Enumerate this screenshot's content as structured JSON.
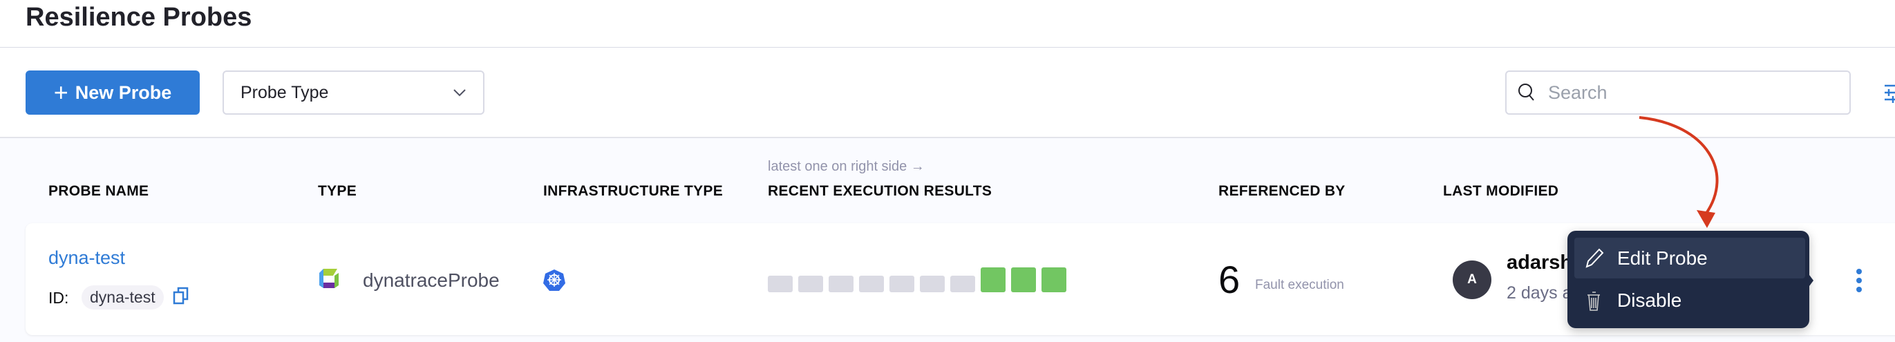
{
  "page": {
    "title": "Resilience Probes"
  },
  "toolbar": {
    "new_probe_label": "New Probe",
    "probe_type_label": "Probe Type",
    "search_placeholder": "Search"
  },
  "table": {
    "hint": "latest one on right side →",
    "columns": [
      "PROBE NAME",
      "TYPE",
      "INFRASTRUCTURE TYPE",
      "RECENT EXECUTION RESULTS",
      "REFERENCED BY",
      "LAST MODIFIED"
    ],
    "rows": [
      {
        "name": "dyna-test",
        "id_label": "ID:",
        "id": "dyna-test",
        "type": "dynatraceProbe",
        "type_icon": "dynatrace-icon",
        "infra_icon": "kubernetes-icon",
        "recent_results": [
          "none",
          "none",
          "none",
          "none",
          "none",
          "none",
          "none",
          "success",
          "success",
          "success"
        ],
        "referenced_count": "6",
        "referenced_text": "Fault execution",
        "avatar_initial": "A",
        "modified_by": "adarsh",
        "modified_when": "2 days a"
      }
    ]
  },
  "context_menu": {
    "items": [
      {
        "label": "Edit Probe",
        "icon": "pencil-icon"
      },
      {
        "label": "Disable",
        "icon": "trash-icon"
      }
    ]
  },
  "colors": {
    "primary": "#2f7bd6",
    "success": "#72c662",
    "none": "#dadae3",
    "menu_bg": "#1f2a44",
    "annotation_arrow": "#d63a1f"
  }
}
